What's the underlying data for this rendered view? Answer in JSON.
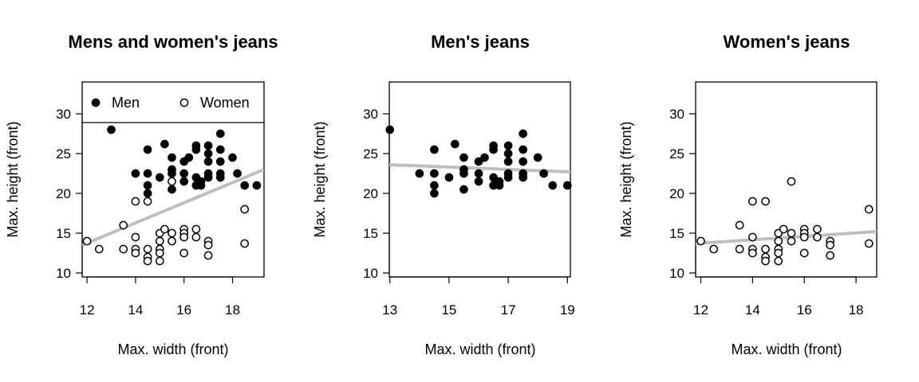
{
  "chart_data": [
    {
      "type": "scatter",
      "title": "Mens and women's jeans",
      "xlabel": "Max. width (front)",
      "ylabel": "Max. height (front)",
      "xlim": [
        11.8,
        19.3
      ],
      "ylim": [
        9.5,
        34
      ],
      "xticks": [
        12,
        14,
        16,
        18
      ],
      "yticks": [
        10,
        15,
        20,
        25,
        30
      ],
      "legend": {
        "placement": "top",
        "entries": [
          "Men",
          "Women"
        ]
      },
      "series": [
        {
          "name": "Men",
          "marker": "filled",
          "points": [
            [
              13,
              28
            ],
            [
              14,
              22.5
            ],
            [
              14.5,
              25.5
            ],
            [
              14.5,
              22.5
            ],
            [
              14.5,
              21
            ],
            [
              14.5,
              20
            ],
            [
              15,
              22
            ],
            [
              15.2,
              26.2
            ],
            [
              15.5,
              24.5
            ],
            [
              15.5,
              23
            ],
            [
              15.5,
              22.5
            ],
            [
              15.5,
              20.5
            ],
            [
              16,
              24
            ],
            [
              16,
              22.5
            ],
            [
              16,
              21.5
            ],
            [
              16.2,
              24.5
            ],
            [
              16.5,
              26
            ],
            [
              16.5,
              25.5
            ],
            [
              16.5,
              22
            ],
            [
              16.5,
              21
            ],
            [
              16.7,
              21.5
            ],
            [
              16.7,
              21
            ],
            [
              17,
              26
            ],
            [
              17,
              25
            ],
            [
              17,
              24
            ],
            [
              17,
              22.5
            ],
            [
              17,
              22
            ],
            [
              17.5,
              27.5
            ],
            [
              17.5,
              25.5
            ],
            [
              17.5,
              24
            ],
            [
              17.5,
              22.5
            ],
            [
              17.5,
              22
            ],
            [
              18,
              24.5
            ],
            [
              18.2,
              22.5
            ],
            [
              18.5,
              21
            ],
            [
              19,
              21
            ]
          ]
        },
        {
          "name": "Women",
          "marker": "open",
          "points": [
            [
              12,
              14
            ],
            [
              12.5,
              13
            ],
            [
              13.5,
              16
            ],
            [
              13.5,
              13
            ],
            [
              14,
              19
            ],
            [
              14,
              14.5
            ],
            [
              14,
              13
            ],
            [
              14,
              12.5
            ],
            [
              14.5,
              19
            ],
            [
              14.5,
              13
            ],
            [
              14.5,
              12
            ],
            [
              14.5,
              11.5
            ],
            [
              15,
              15
            ],
            [
              15,
              14
            ],
            [
              15,
              13
            ],
            [
              15,
              12.5
            ],
            [
              15,
              11.5
            ],
            [
              15.2,
              15.5
            ],
            [
              15.5,
              21.5
            ],
            [
              15.5,
              15
            ],
            [
              15.5,
              14
            ],
            [
              16,
              15.5
            ],
            [
              16,
              15
            ],
            [
              16,
              14.5
            ],
            [
              16,
              12.5
            ],
            [
              16.5,
              15.5
            ],
            [
              16.5,
              14.5
            ],
            [
              17,
              14
            ],
            [
              17,
              13.5
            ],
            [
              17,
              12.2
            ],
            [
              18.5,
              18
            ],
            [
              18.5,
              13.7
            ]
          ]
        }
      ],
      "trendline": {
        "color": "#bebebe",
        "from": [
          11.8,
          13.5
        ],
        "to": [
          19.3,
          23
        ]
      }
    },
    {
      "type": "scatter",
      "title": "Men's jeans",
      "xlabel": "Max. width (front)",
      "ylabel": "Max. height (front)",
      "xlim": [
        12.98,
        19.1
      ],
      "ylim": [
        9.5,
        34
      ],
      "xticks": [
        13,
        15,
        17,
        19
      ],
      "yticks": [
        10,
        15,
        20,
        25,
        30
      ],
      "series": [
        {
          "name": "Men",
          "marker": "filled",
          "points": [
            [
              13,
              28
            ],
            [
              14,
              22.5
            ],
            [
              14.5,
              25.5
            ],
            [
              14.5,
              22.5
            ],
            [
              14.5,
              21
            ],
            [
              14.5,
              20
            ],
            [
              15,
              22
            ],
            [
              15.2,
              26.2
            ],
            [
              15.5,
              24.5
            ],
            [
              15.5,
              23
            ],
            [
              15.5,
              22.5
            ],
            [
              15.5,
              20.5
            ],
            [
              16,
              24
            ],
            [
              16,
              22.5
            ],
            [
              16,
              21.5
            ],
            [
              16.2,
              24.5
            ],
            [
              16.5,
              26
            ],
            [
              16.5,
              25.5
            ],
            [
              16.5,
              22
            ],
            [
              16.5,
              21
            ],
            [
              16.7,
              21.5
            ],
            [
              16.7,
              21
            ],
            [
              17,
              26
            ],
            [
              17,
              25
            ],
            [
              17,
              24
            ],
            [
              17,
              22.5
            ],
            [
              17,
              22
            ],
            [
              17.5,
              27.5
            ],
            [
              17.5,
              25.5
            ],
            [
              17.5,
              24
            ],
            [
              17.5,
              22.5
            ],
            [
              17.5,
              22
            ],
            [
              18,
              24.5
            ],
            [
              18.2,
              22.5
            ],
            [
              18.5,
              21
            ],
            [
              19,
              21
            ]
          ]
        }
      ],
      "trendline": {
        "color": "#bebebe",
        "from": [
          12.98,
          23.6
        ],
        "to": [
          19.1,
          22.7
        ]
      }
    },
    {
      "type": "scatter",
      "title": "Women's jeans",
      "xlabel": "Max. width (front)",
      "ylabel": "Max. height (front)",
      "xlim": [
        11.8,
        18.8
      ],
      "ylim": [
        9.5,
        34
      ],
      "xticks": [
        12,
        14,
        16,
        18
      ],
      "yticks": [
        10,
        15,
        20,
        25,
        30
      ],
      "series": [
        {
          "name": "Women",
          "marker": "open",
          "points": [
            [
              12,
              14
            ],
            [
              12.5,
              13
            ],
            [
              13.5,
              16
            ],
            [
              13.5,
              13
            ],
            [
              14,
              19
            ],
            [
              14,
              14.5
            ],
            [
              14,
              13
            ],
            [
              14,
              12.5
            ],
            [
              14.5,
              19
            ],
            [
              14.5,
              13
            ],
            [
              14.5,
              12
            ],
            [
              14.5,
              11.5
            ],
            [
              15,
              15
            ],
            [
              15,
              14
            ],
            [
              15,
              13
            ],
            [
              15,
              12.5
            ],
            [
              15,
              11.5
            ],
            [
              15.2,
              15.5
            ],
            [
              15.5,
              21.5
            ],
            [
              15.5,
              15
            ],
            [
              15.5,
              14
            ],
            [
              16,
              15.5
            ],
            [
              16,
              15
            ],
            [
              16,
              14.5
            ],
            [
              16,
              12.5
            ],
            [
              16.5,
              15.5
            ],
            [
              16.5,
              14.5
            ],
            [
              17,
              14
            ],
            [
              17,
              13.5
            ],
            [
              17,
              12.2
            ],
            [
              18.5,
              18
            ],
            [
              18.5,
              13.7
            ]
          ]
        }
      ],
      "trendline": {
        "color": "#bebebe",
        "from": [
          11.8,
          13.7
        ],
        "to": [
          18.8,
          15.2
        ]
      }
    }
  ]
}
